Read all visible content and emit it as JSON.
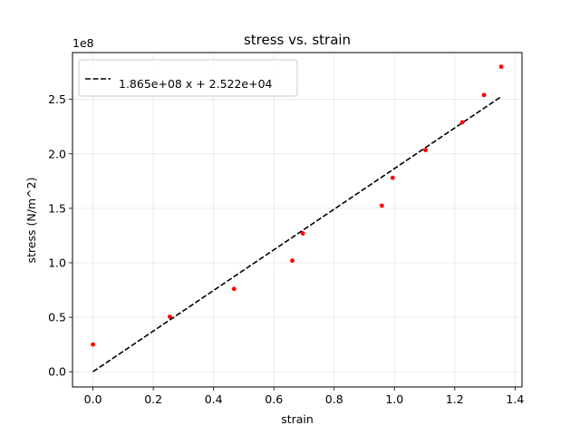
{
  "chart_data": {
    "type": "scatter",
    "title": "stress vs. strain",
    "xlabel": "strain",
    "ylabel": "stress (N/m^2)",
    "y_offset_label": "1e8",
    "xlim": [
      -0.068,
      1.423
    ],
    "ylim": [
      -14000000.0,
      293000000.0
    ],
    "x_ticks": [
      0.0,
      0.2,
      0.4,
      0.6,
      0.8,
      1.0,
      1.2,
      1.4
    ],
    "x_tick_labels": [
      "0.0",
      "0.2",
      "0.4",
      "0.6",
      "0.8",
      "1.0",
      "1.2",
      "1.4"
    ],
    "y_ticks": [
      0,
      50000000,
      100000000,
      150000000,
      200000000,
      250000000
    ],
    "y_tick_labels": [
      "0.0",
      "0.5",
      "1.0",
      "1.5",
      "2.0",
      "2.5"
    ],
    "grid": true,
    "legend_position": "top-left",
    "series": [
      {
        "kind": "points",
        "color": "#ff0000",
        "x": [
          0.0,
          0.255,
          0.468,
          0.661,
          0.696,
          0.958,
          0.994,
          1.103,
          1.225,
          1.297,
          1.354
        ],
        "y": [
          25000000,
          50500000,
          76000000,
          102000000,
          127000000,
          152500000,
          178000000,
          203500000,
          229000000,
          254000000,
          280000000
        ]
      },
      {
        "kind": "fit-line",
        "name": "1.865e+08 x + 2.522e+04",
        "color": "#000000",
        "dash": "dashed",
        "slope": 186500000,
        "intercept": 25220,
        "x_range": [
          0.0,
          1.354
        ]
      }
    ]
  }
}
